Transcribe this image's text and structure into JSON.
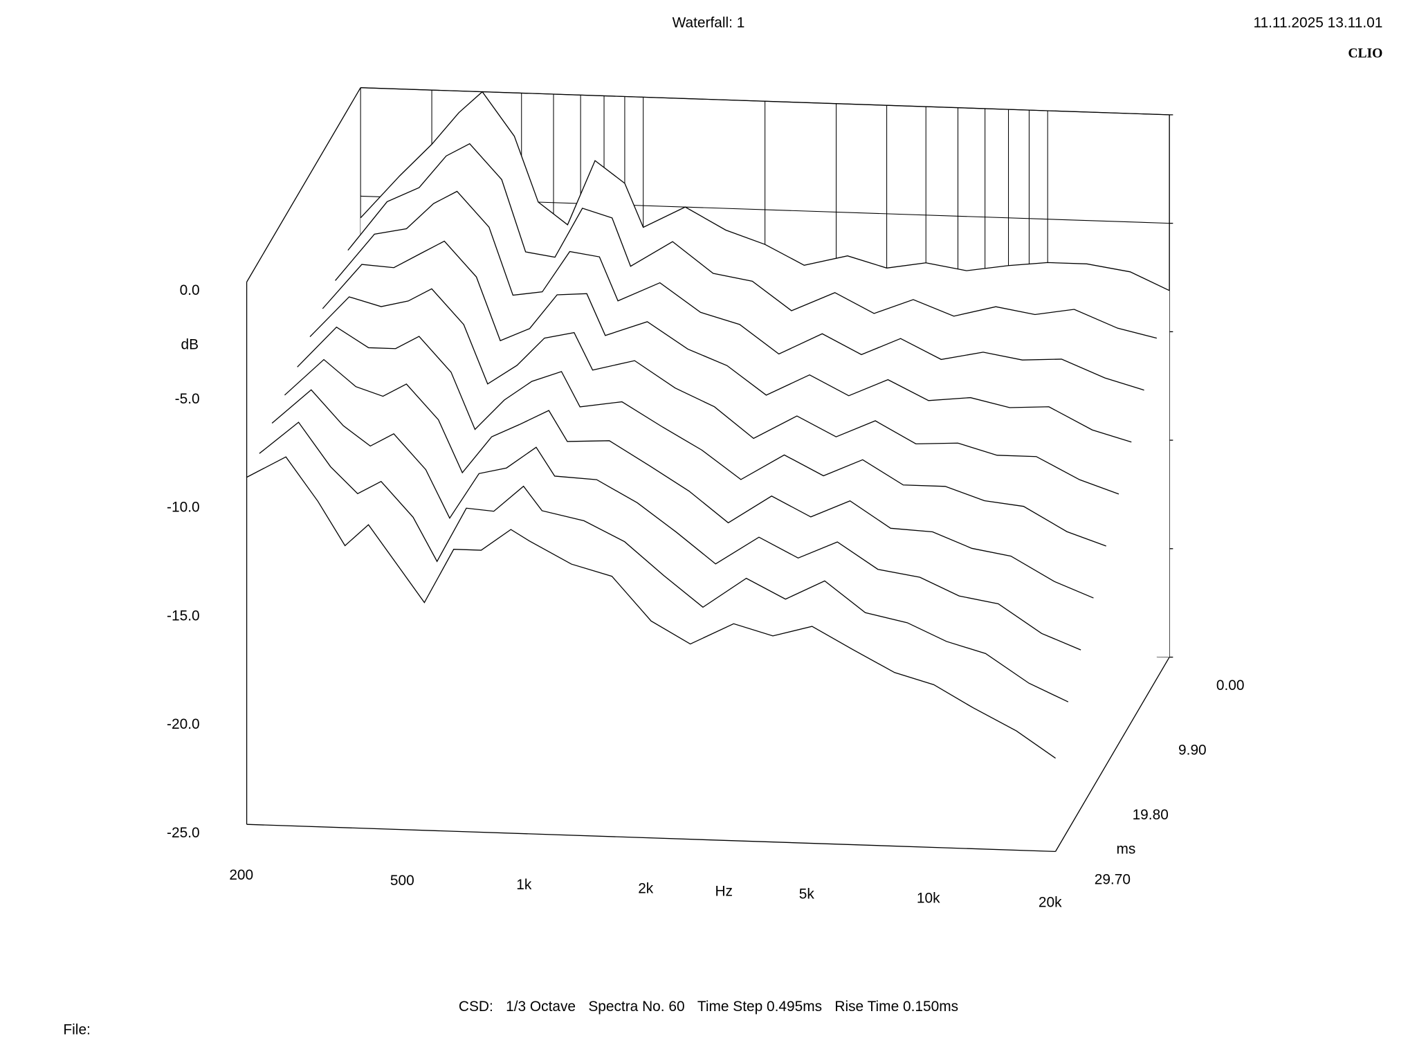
{
  "header": {
    "title": "Waterfall: 1",
    "timestamp": "11.11.2025 13.11.01",
    "brand": "CLIO"
  },
  "chart_data": {
    "type": "waterfall",
    "ylabel": "dB",
    "xlabel": "Hz",
    "zlabel": "ms",
    "x_log": true,
    "xlim": [
      200,
      20000
    ],
    "xticks": [
      200,
      500,
      {
        "value": 1000,
        "label": "1k"
      },
      {
        "value": 2000,
        "label": "2k"
      },
      {
        "value": 5000,
        "label": "5k"
      },
      {
        "value": 10000,
        "label": "10k"
      },
      {
        "value": 20000,
        "label": "20k"
      }
    ],
    "x_minor_grid": [
      300,
      400,
      600,
      700,
      800,
      900,
      3000,
      4000,
      6000,
      7000,
      8000,
      9000
    ],
    "ylim": [
      -25,
      0
    ],
    "yticks": [
      {
        "value": 0,
        "label": "0.0"
      },
      {
        "value": -5,
        "label": "-5.0"
      },
      {
        "value": -10,
        "label": "-10.0"
      },
      {
        "value": -15,
        "label": "-15.0"
      },
      {
        "value": -20,
        "label": "-20.0"
      },
      {
        "value": -25,
        "label": "-25.0"
      }
    ],
    "zlim": [
      0,
      29.7
    ],
    "zticks": [
      {
        "value": 0,
        "label": "0.00"
      },
      {
        "value": 9.9,
        "label": "9.90"
      },
      {
        "value": 19.8,
        "label": "19.80"
      },
      {
        "value": 29.7,
        "label": "29.70"
      }
    ],
    "grid": true,
    "color": "#000000",
    "x": [
      200,
      250,
      300,
      350,
      400,
      480,
      550,
      650,
      760,
      900,
      1000,
      1270,
      1600,
      2000,
      2500,
      3200,
      4000,
      5000,
      6300,
      8000,
      10000,
      12500,
      16000,
      20000
    ],
    "slices": [
      {
        "time": 0,
        "values": [
          -6,
          -4,
          -2.5,
          -1,
          0,
          -2,
          -5,
          -6,
          -3,
          -4,
          -6,
          -5,
          -6,
          -6.6,
          -7.5,
          -7,
          -7.5,
          -7.2,
          -7.5,
          -7.2,
          -7,
          -7,
          -7.3,
          -8.1
        ]
      },
      {
        "time": 3.3,
        "values": [
          -6.5,
          -4.2,
          -3.5,
          -2.0,
          -1.4,
          -3.0,
          -6.3,
          -6.5,
          -4.2,
          -4.6,
          -6.8,
          -5.6,
          -7.0,
          -7.3,
          -8.6,
          -7.7,
          -8.6,
          -7.9,
          -8.6,
          -8.1,
          -8.4,
          -8.1,
          -8.9,
          -9.3
        ]
      },
      {
        "time": 6.6,
        "values": [
          -6.9,
          -4.7,
          -4.4,
          -3.2,
          -2.6,
          -4.2,
          -7.3,
          -7.1,
          -5.2,
          -5.4,
          -7.4,
          -6.5,
          -7.8,
          -8.3,
          -9.6,
          -8.6,
          -9.5,
          -8.7,
          -9.6,
          -9.2,
          -9.5,
          -9.4,
          -10.2,
          -10.7
        ]
      },
      {
        "time": 9.9,
        "values": [
          -7.2,
          -5.1,
          -5.2,
          -4.5,
          -3.9,
          -5.5,
          -8.4,
          -7.8,
          -6.2,
          -6.1,
          -8.0,
          -7.3,
          -8.5,
          -9.2,
          -10.5,
          -9.5,
          -10.4,
          -9.6,
          -10.5,
          -10.3,
          -10.7,
          -10.6,
          -11.6,
          -12.1
        ]
      },
      {
        "time": 13.2,
        "values": [
          -7.5,
          -5.6,
          -6.0,
          -5.7,
          -5.1,
          -6.7,
          -9.4,
          -8.5,
          -7.2,
          -6.9,
          -8.6,
          -8.1,
          -9.3,
          -10.1,
          -11.5,
          -10.4,
          -11.3,
          -10.5,
          -11.5,
          -11.4,
          -11.9,
          -11.9,
          -12.9,
          -13.5
        ]
      },
      {
        "time": 16.5,
        "values": [
          -7.9,
          -6.0,
          -6.9,
          -6.9,
          -6.3,
          -7.9,
          -10.5,
          -9.1,
          -8.2,
          -7.7,
          -9.3,
          -9.0,
          -10.1,
          -11.1,
          -12.4,
          -11.2,
          -12.1,
          -11.3,
          -12.4,
          -12.4,
          -13.0,
          -13.2,
          -14.3,
          -14.9
        ]
      },
      {
        "time": 19.8,
        "values": [
          -8.2,
          -6.5,
          -7.7,
          -8.1,
          -7.5,
          -9.1,
          -11.5,
          -9.8,
          -9.2,
          -8.5,
          -9.9,
          -9.8,
          -10.9,
          -12.0,
          -13.4,
          -12.1,
          -13.0,
          -12.2,
          -13.4,
          -13.5,
          -14.2,
          -14.5,
          -15.6,
          -16.3
        ]
      },
      {
        "time": 23.1,
        "values": [
          -8.5,
          -6.9,
          -8.5,
          -9.4,
          -8.8,
          -10.4,
          -12.6,
          -10.5,
          -10.2,
          -9.2,
          -10.5,
          -10.6,
          -11.6,
          -12.9,
          -14.3,
          -13.0,
          -13.9,
          -13.1,
          -14.3,
          -14.6,
          -15.4,
          -15.7,
          -17.0,
          -17.7
        ]
      },
      {
        "time": 26.4,
        "values": [
          -8.9,
          -7.4,
          -9.4,
          -10.6,
          -10.0,
          -11.6,
          -13.6,
          -11.1,
          -11.2,
          -10.0,
          -11.1,
          -11.5,
          -12.4,
          -13.9,
          -15.3,
          -13.9,
          -14.8,
          -13.9,
          -15.3,
          -15.7,
          -16.5,
          -17.0,
          -18.3,
          -19.1
        ]
      },
      {
        "time": 29.7,
        "values": [
          -9,
          -8,
          -10,
          -12,
          -11,
          -13,
          -14.5,
          -12,
          -12,
          -11,
          -11.5,
          -12.5,
          -13,
          -15,
          -16,
          -15,
          -15.5,
          -15,
          -16,
          -17,
          -17.5,
          -18.5,
          -19.5,
          -20.7
        ]
      }
    ]
  },
  "footer": {
    "parts": [
      "CSD:",
      "1/3 Octave",
      "Spectra No. 60",
      "Time Step 0.495ms",
      "Rise Time 0.150ms"
    ],
    "file_label": "File:"
  }
}
